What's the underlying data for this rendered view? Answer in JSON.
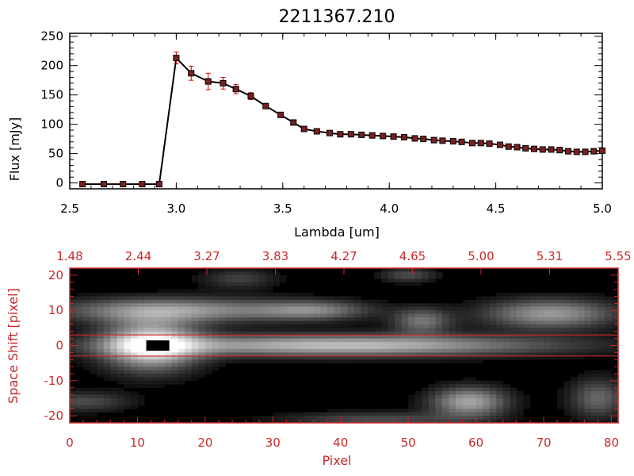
{
  "title": "2211367.210",
  "colors": {
    "axis_red": "#c8282a",
    "marker": "#7a1f1f",
    "errorbar": "#cc0000",
    "line": "#000000"
  },
  "chart_data": [
    {
      "type": "line",
      "xlabel": "Lambda [um]",
      "ylabel": "Flux [mJy]",
      "xlim": [
        2.5,
        5.0
      ],
      "ylim": [
        -10,
        255
      ],
      "xticks": [
        "2.5",
        "3.0",
        "3.5",
        "4.0",
        "4.5",
        "5.0"
      ],
      "yticks": [
        "0",
        "50",
        "100",
        "150",
        "200",
        "250"
      ],
      "x": [
        2.56,
        2.66,
        2.75,
        2.84,
        2.92,
        3.0,
        3.07,
        3.15,
        3.22,
        3.28,
        3.35,
        3.42,
        3.49,
        3.55,
        3.6,
        3.66,
        3.72,
        3.77,
        3.82,
        3.87,
        3.92,
        3.97,
        4.02,
        4.07,
        4.12,
        4.16,
        4.21,
        4.25,
        4.3,
        4.34,
        4.39,
        4.43,
        4.47,
        4.52,
        4.56,
        4.6,
        4.64,
        4.68,
        4.72,
        4.76,
        4.8,
        4.84,
        4.88,
        4.92,
        4.96,
        5.0
      ],
      "y": [
        -2,
        -2,
        -2,
        -2,
        -2,
        213,
        187,
        173,
        170,
        160,
        148,
        131,
        116,
        103,
        92,
        88,
        85,
        83,
        83,
        82,
        81,
        80,
        79,
        78,
        76,
        75,
        73,
        72,
        71,
        70,
        68,
        68,
        67,
        65,
        62,
        61,
        59,
        58,
        57,
        57,
        56,
        54,
        53,
        53,
        54,
        55
      ],
      "yerr": [
        0,
        0,
        0,
        0,
        0,
        10,
        12,
        14,
        10,
        8,
        6,
        3,
        2,
        2,
        2,
        2,
        2,
        2,
        2,
        2,
        2,
        2,
        2,
        2,
        2,
        2,
        2,
        2,
        2,
        2,
        2,
        2,
        2,
        2,
        2,
        2,
        2,
        2,
        2,
        2,
        2,
        2,
        2,
        2,
        2,
        2
      ]
    },
    {
      "type": "heatmap",
      "xlabel": "Pixel",
      "ylabel": "Space Shift [pixel]",
      "xlim": [
        0,
        81
      ],
      "ylim": [
        -22,
        22
      ],
      "xticks": [
        "0",
        "10",
        "20",
        "30",
        "40",
        "50",
        "60",
        "70",
        "80"
      ],
      "yticks": [
        "-20",
        "-10",
        "0",
        "10",
        "20"
      ],
      "top_ticks": [
        "1.48",
        "2.44",
        "3.27",
        "3.83",
        "4.27",
        "4.65",
        "5.00",
        "5.31",
        "5.55"
      ],
      "aperture": [
        -3,
        3
      ],
      "peak_pixel": 13,
      "features": [
        {
          "cx": 40,
          "cy": 0,
          "sx": 22,
          "sy": 2.2,
          "amp": 0.75
        },
        {
          "cx": 12,
          "cy": 0,
          "sx": 5,
          "sy": 5,
          "amp": 0.9
        },
        {
          "cx": 15,
          "cy": 10,
          "sx": 12,
          "sy": 2.5,
          "amp": 0.6
        },
        {
          "cx": 36,
          "cy": 10,
          "sx": 6,
          "sy": 2,
          "amp": 0.45
        },
        {
          "cx": 52,
          "cy": 7,
          "sx": 3,
          "sy": 2.5,
          "amp": 0.45
        },
        {
          "cx": 71,
          "cy": 9,
          "sx": 7,
          "sy": 3,
          "amp": 0.6
        },
        {
          "cx": 59,
          "cy": -16,
          "sx": 4,
          "sy": 3,
          "amp": 0.65
        },
        {
          "cx": 2,
          "cy": -16,
          "sx": 5,
          "sy": 2,
          "amp": 0.3
        },
        {
          "cx": 78,
          "cy": -15,
          "sx": 3,
          "sy": 4,
          "amp": 0.4
        },
        {
          "cx": 45,
          "cy": -21,
          "sx": 10,
          "sy": 1.5,
          "amp": 0.3
        },
        {
          "cx": 50,
          "cy": 20,
          "sx": 3,
          "sy": 1.5,
          "amp": 0.3
        },
        {
          "cx": 25,
          "cy": 19,
          "sx": 4,
          "sy": 2,
          "amp": 0.25
        }
      ]
    }
  ]
}
